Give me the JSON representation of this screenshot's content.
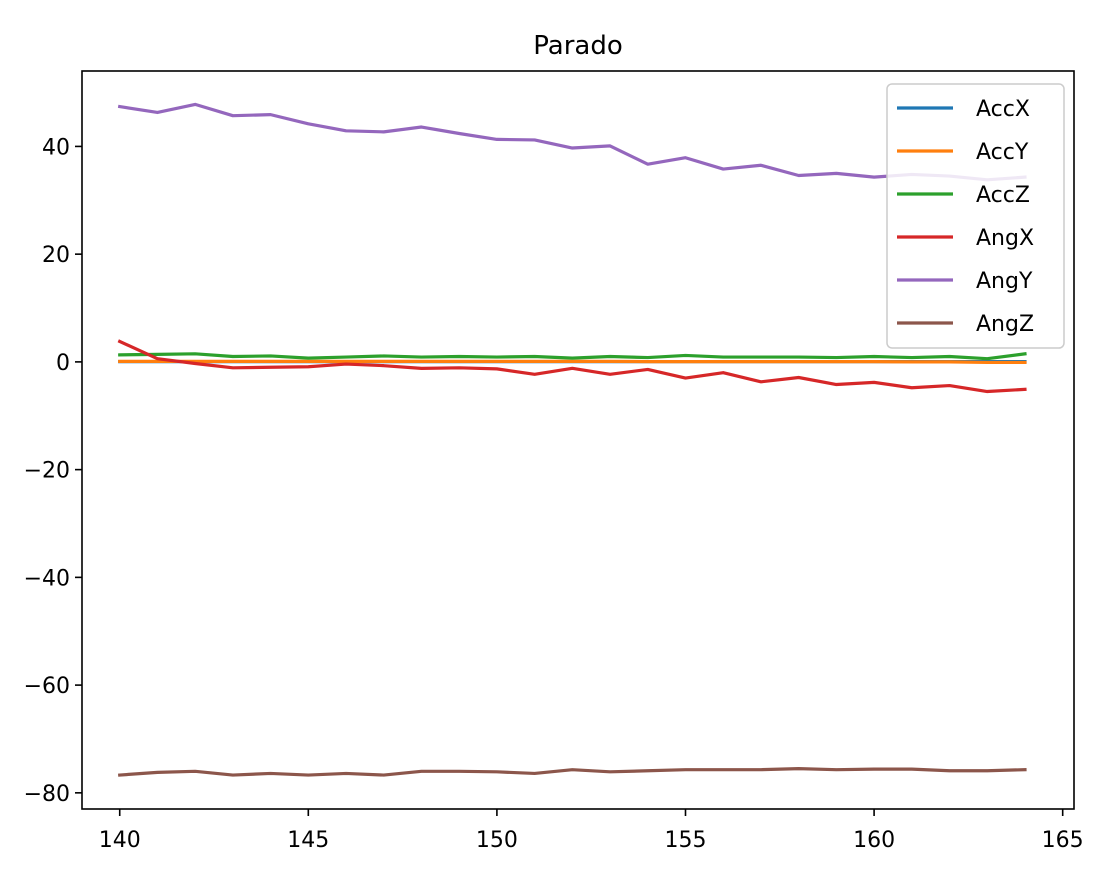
{
  "chart_data": {
    "type": "line",
    "title": "Parado",
    "xlabel": "",
    "ylabel": "",
    "xlim": [
      139.0,
      165.3
    ],
    "ylim": [
      -83,
      54
    ],
    "xticks": [
      140,
      145,
      150,
      155,
      160,
      165
    ],
    "yticks": [
      -80,
      -60,
      -40,
      -20,
      0,
      20,
      40
    ],
    "ytick_labels": [
      "−80",
      "−60",
      "−40",
      "−20",
      "0",
      "20",
      "40"
    ],
    "grid": false,
    "legend_position": "top-right",
    "x": [
      140,
      141,
      142,
      143,
      144,
      145,
      146,
      147,
      148,
      149,
      150,
      151,
      152,
      153,
      154,
      155,
      156,
      157,
      158,
      159,
      160,
      161,
      162,
      163,
      164
    ],
    "series": [
      {
        "name": "AccX",
        "color": "#1f77b4",
        "values": [
          0.05,
          0.05,
          0.05,
          0.05,
          0.05,
          0.05,
          0.05,
          0.05,
          0.05,
          0.05,
          0.05,
          0.05,
          0.05,
          0.05,
          0.05,
          0.05,
          0.05,
          0.05,
          0.05,
          0.05,
          0.05,
          0.05,
          0.05,
          0.05,
          0.05
        ]
      },
      {
        "name": "AccY",
        "color": "#ff7f0e",
        "values": [
          0.1,
          0.1,
          0.1,
          0.1,
          0.1,
          0.1,
          0.1,
          0.1,
          0.1,
          0.1,
          0.1,
          0.1,
          0.1,
          0.1,
          0.05,
          0.05,
          0.05,
          0.05,
          0.05,
          0.05,
          0.05,
          0.0,
          0.0,
          -0.1,
          -0.1
        ]
      },
      {
        "name": "AccZ",
        "color": "#2ca02c",
        "values": [
          1.3,
          1.4,
          1.5,
          1.0,
          1.1,
          0.7,
          0.9,
          1.1,
          0.9,
          1.0,
          0.9,
          1.0,
          0.7,
          1.0,
          0.8,
          1.2,
          0.9,
          0.9,
          0.9,
          0.8,
          1.0,
          0.8,
          1.0,
          0.6,
          1.5
        ]
      },
      {
        "name": "AngX",
        "color": "#d62728",
        "values": [
          3.8,
          0.6,
          -0.3,
          -1.1,
          -1.0,
          -0.9,
          -0.4,
          -0.7,
          -1.2,
          -1.1,
          -1.3,
          -2.3,
          -1.2,
          -2.3,
          -1.4,
          -3.0,
          -2.0,
          -3.7,
          -2.9,
          -4.2,
          -3.8,
          -4.8,
          -4.4,
          -5.5,
          -5.1
        ]
      },
      {
        "name": "AngY",
        "color": "#9467bd",
        "values": [
          47.4,
          46.3,
          47.8,
          45.7,
          45.9,
          44.2,
          42.9,
          42.7,
          43.6,
          42.4,
          41.3,
          41.2,
          39.7,
          40.1,
          36.7,
          37.9,
          35.8,
          36.5,
          34.6,
          35.0,
          34.3,
          34.8,
          34.5,
          33.8,
          34.3
        ]
      },
      {
        "name": "AngZ",
        "color": "#8c564b",
        "values": [
          -76.7,
          -76.2,
          -76.0,
          -76.7,
          -76.4,
          -76.7,
          -76.4,
          -76.7,
          -76.0,
          -76.0,
          -76.1,
          -76.4,
          -75.7,
          -76.1,
          -75.9,
          -75.7,
          -75.7,
          -75.7,
          -75.5,
          -75.7,
          -75.6,
          -75.6,
          -75.9,
          -75.9,
          -75.7
        ]
      }
    ]
  }
}
